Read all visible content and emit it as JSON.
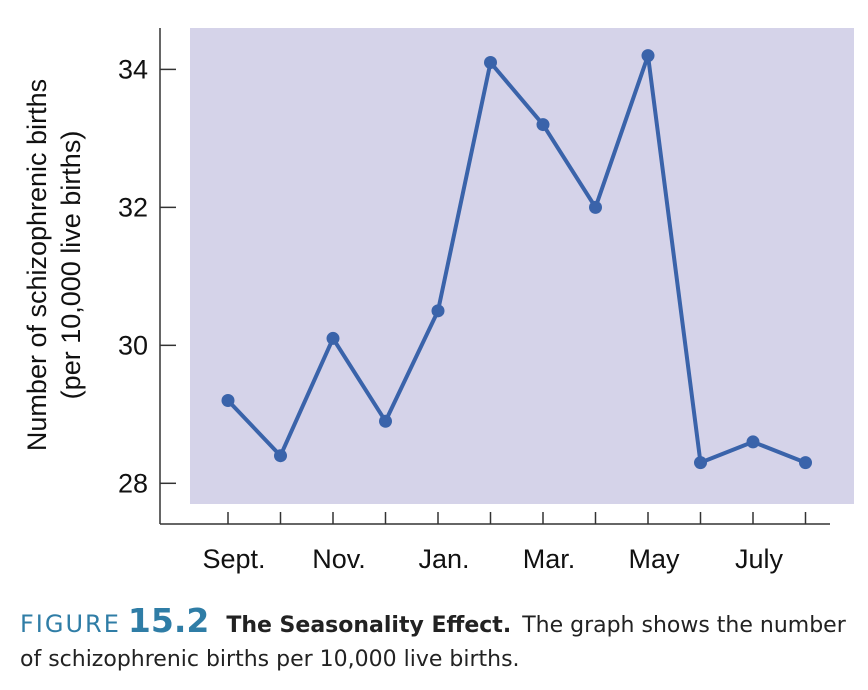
{
  "chart_data": {
    "type": "line",
    "ylabel_line1": "Number of schizophrenic births",
    "ylabel_line2": "(per 10,000 live births)",
    "xlabel": "",
    "ylim": [
      27.7,
      34.6
    ],
    "y_ticks": [
      28,
      30,
      32,
      34
    ],
    "x_labels": [
      "Sept.",
      "Nov.",
      "Jan.",
      "Mar.",
      "May",
      "July"
    ],
    "categories": [
      "Sept.",
      "Oct.",
      "Nov.",
      "Dec.",
      "Jan.",
      "Feb.",
      "Mar.",
      "Apr.",
      "May",
      "June",
      "July",
      "Aug."
    ],
    "values": [
      29.2,
      28.4,
      30.1,
      28.9,
      30.5,
      34.1,
      33.2,
      32.0,
      34.2,
      28.3,
      28.6,
      28.3
    ],
    "plot_background": "#d5d3e9",
    "line_color": "#3a63aa",
    "grid": false
  },
  "caption": {
    "figure_word": "FIGURE",
    "figure_number": "15.2",
    "title": "The Seasonality Effect.",
    "text": "The graph shows the number of schizophrenic births per 10,000 live births."
  }
}
